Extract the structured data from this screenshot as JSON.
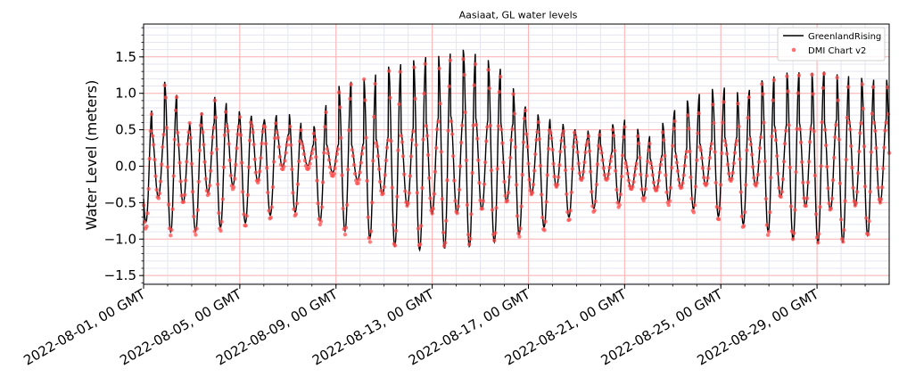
{
  "chart_data": {
    "type": "line",
    "title": "Aasiaat, GL water levels",
    "xlabel": "",
    "ylabel": "Water Level (meters)",
    "ylim": [
      -1.62,
      1.95
    ],
    "xlim": [
      "2022-08-01T00:00",
      "2022-09-01T00:00"
    ],
    "y_ticks": [
      -1.5,
      -1.0,
      -0.5,
      0.0,
      0.5,
      1.0,
      1.5
    ],
    "y_tick_labels": [
      "−1.5",
      "−1.0",
      "−0.5",
      "0.0",
      "0.5",
      "1.0",
      "1.5"
    ],
    "x_ticks": [
      "2022-08-01",
      "2022-08-05",
      "2022-08-09",
      "2022-08-13",
      "2022-08-17",
      "2022-08-21",
      "2022-08-25",
      "2022-08-29"
    ],
    "x_tick_labels": [
      "2022-08-01, 00 GMT",
      "2022-08-05, 00 GMT",
      "2022-08-09, 00 GMT",
      "2022-08-13, 00 GMT",
      "2022-08-17, 00 GMT",
      "2022-08-21, 00 GMT",
      "2022-08-25, 00 GMT",
      "2022-08-29, 00 GMT"
    ],
    "grid": true,
    "legend_position": "top-right",
    "tidal_period_hours": 12.42,
    "series": [
      {
        "name": "GreenlandRising",
        "style": "line",
        "color": "#000000",
        "peak_dates": [
          "2022-08-01",
          "2022-08-02",
          "2022-08-03",
          "2022-08-04",
          "2022-08-05",
          "2022-08-06",
          "2022-08-07",
          "2022-08-08",
          "2022-08-09",
          "2022-08-10",
          "2022-08-11",
          "2022-08-12",
          "2022-08-13",
          "2022-08-14",
          "2022-08-15",
          "2022-08-16",
          "2022-08-17",
          "2022-08-18",
          "2022-08-19",
          "2022-08-20",
          "2022-08-21",
          "2022-08-22",
          "2022-08-23",
          "2022-08-24",
          "2022-08-25",
          "2022-08-26",
          "2022-08-27",
          "2022-08-28",
          "2022-08-29",
          "2022-08-30",
          "2022-08-31"
        ],
        "high_tide_max": [
          0.55,
          1.25,
          0.55,
          1.0,
          0.75,
          0.65,
          0.75,
          0.5,
          1.1,
          1.2,
          1.35,
          1.45,
          1.52,
          1.62,
          1.55,
          1.3,
          0.75,
          0.65,
          0.5,
          0.5,
          0.65,
          0.4,
          0.75,
          1.0,
          1.1,
          1.0,
          1.25,
          1.3,
          1.3,
          1.3,
          1.2
        ],
        "high_tide_min": [
          0.4,
          0.5,
          0.5,
          0.6,
          0.6,
          0.6,
          0.45,
          0.3,
          0.3,
          0.3,
          0.4,
          0.5,
          0.65,
          0.7,
          0.65,
          0.6,
          0.55,
          0.5,
          0.45,
          0.3,
          0.1,
          0.1,
          0.2,
          0.3,
          0.4,
          0.4,
          0.55,
          0.6,
          0.6,
          0.65,
          0.65
        ],
        "low_tide": [
          -0.75,
          -0.9,
          -0.9,
          -0.85,
          -0.8,
          -0.7,
          -0.6,
          -0.7,
          -0.85,
          -0.95,
          -1.05,
          -1.15,
          -1.15,
          -1.1,
          -1.1,
          -1.0,
          -0.9,
          -0.8,
          -0.65,
          -0.55,
          -0.5,
          -0.4,
          -0.5,
          -0.6,
          -0.7,
          -0.8,
          -0.9,
          -1.0,
          -1.05,
          -1.05,
          -0.95
        ],
        "mid_low_tide": [
          -0.3,
          -0.5,
          -0.5,
          -0.3,
          -0.25,
          -0.2,
          0.05,
          0.0,
          -0.1,
          -0.2,
          -0.4,
          -0.55,
          -0.65,
          -0.65,
          -0.6,
          -0.5,
          -0.4,
          -0.3,
          -0.2,
          -0.15,
          -0.3,
          -0.35,
          -0.3,
          -0.3,
          -0.2,
          -0.2,
          -0.35,
          -0.5,
          -0.6,
          -0.6,
          -0.5
        ]
      },
      {
        "name": "DMI Chart v2",
        "style": "scatter",
        "color": "#ff4d4d",
        "peak_dates": [
          "2022-08-01",
          "2022-08-02",
          "2022-08-03",
          "2022-08-04",
          "2022-08-05",
          "2022-08-06",
          "2022-08-07",
          "2022-08-08",
          "2022-08-09",
          "2022-08-10",
          "2022-08-11",
          "2022-08-12",
          "2022-08-13",
          "2022-08-14",
          "2022-08-15",
          "2022-08-16",
          "2022-08-17",
          "2022-08-18",
          "2022-08-19",
          "2022-08-20",
          "2022-08-21",
          "2022-08-22",
          "2022-08-23",
          "2022-08-24",
          "2022-08-25",
          "2022-08-26",
          "2022-08-27",
          "2022-08-28",
          "2022-08-29",
          "2022-08-30",
          "2022-08-31"
        ],
        "high_tide_max": [
          0.5,
          1.2,
          0.55,
          0.95,
          0.72,
          0.6,
          0.65,
          0.4,
          1.0,
          1.2,
          1.35,
          1.45,
          1.5,
          1.5,
          1.4,
          1.2,
          0.7,
          0.55,
          0.5,
          0.45,
          0.55,
          0.3,
          0.6,
          0.8,
          0.95,
          0.95,
          1.2,
          1.25,
          1.28,
          1.25,
          1.18
        ],
        "high_tide_min": [
          0.4,
          0.5,
          0.5,
          0.55,
          0.55,
          0.55,
          0.4,
          0.25,
          0.25,
          0.25,
          0.35,
          0.45,
          0.6,
          0.65,
          0.6,
          0.55,
          0.5,
          0.45,
          0.4,
          0.25,
          0.05,
          0.05,
          0.15,
          0.25,
          0.35,
          0.35,
          0.5,
          0.55,
          0.55,
          0.6,
          0.6
        ],
        "low_tide": [
          -0.85,
          -0.95,
          -0.95,
          -0.9,
          -0.85,
          -0.75,
          -0.65,
          -0.75,
          -0.9,
          -1.0,
          -1.1,
          -1.1,
          -1.1,
          -1.1,
          -1.05,
          -1.0,
          -0.95,
          -0.85,
          -0.7,
          -0.6,
          -0.55,
          -0.45,
          -0.55,
          -0.65,
          -0.75,
          -0.85,
          -0.95,
          -1.0,
          -1.05,
          -1.05,
          -0.95
        ],
        "mid_low_tide": [
          -0.35,
          -0.5,
          -0.5,
          -0.35,
          -0.3,
          -0.2,
          0.0,
          -0.05,
          -0.15,
          -0.25,
          -0.4,
          -0.55,
          -0.65,
          -0.65,
          -0.6,
          -0.5,
          -0.4,
          -0.3,
          -0.2,
          -0.15,
          -0.3,
          -0.35,
          -0.3,
          -0.3,
          -0.2,
          -0.2,
          -0.35,
          -0.5,
          -0.6,
          -0.6,
          -0.5
        ]
      }
    ]
  },
  "colors": {
    "grid_major": "#ffb3b3",
    "grid_minor": "#e5e6f0",
    "line": "#000000",
    "scatter": "#ff4d4d"
  }
}
